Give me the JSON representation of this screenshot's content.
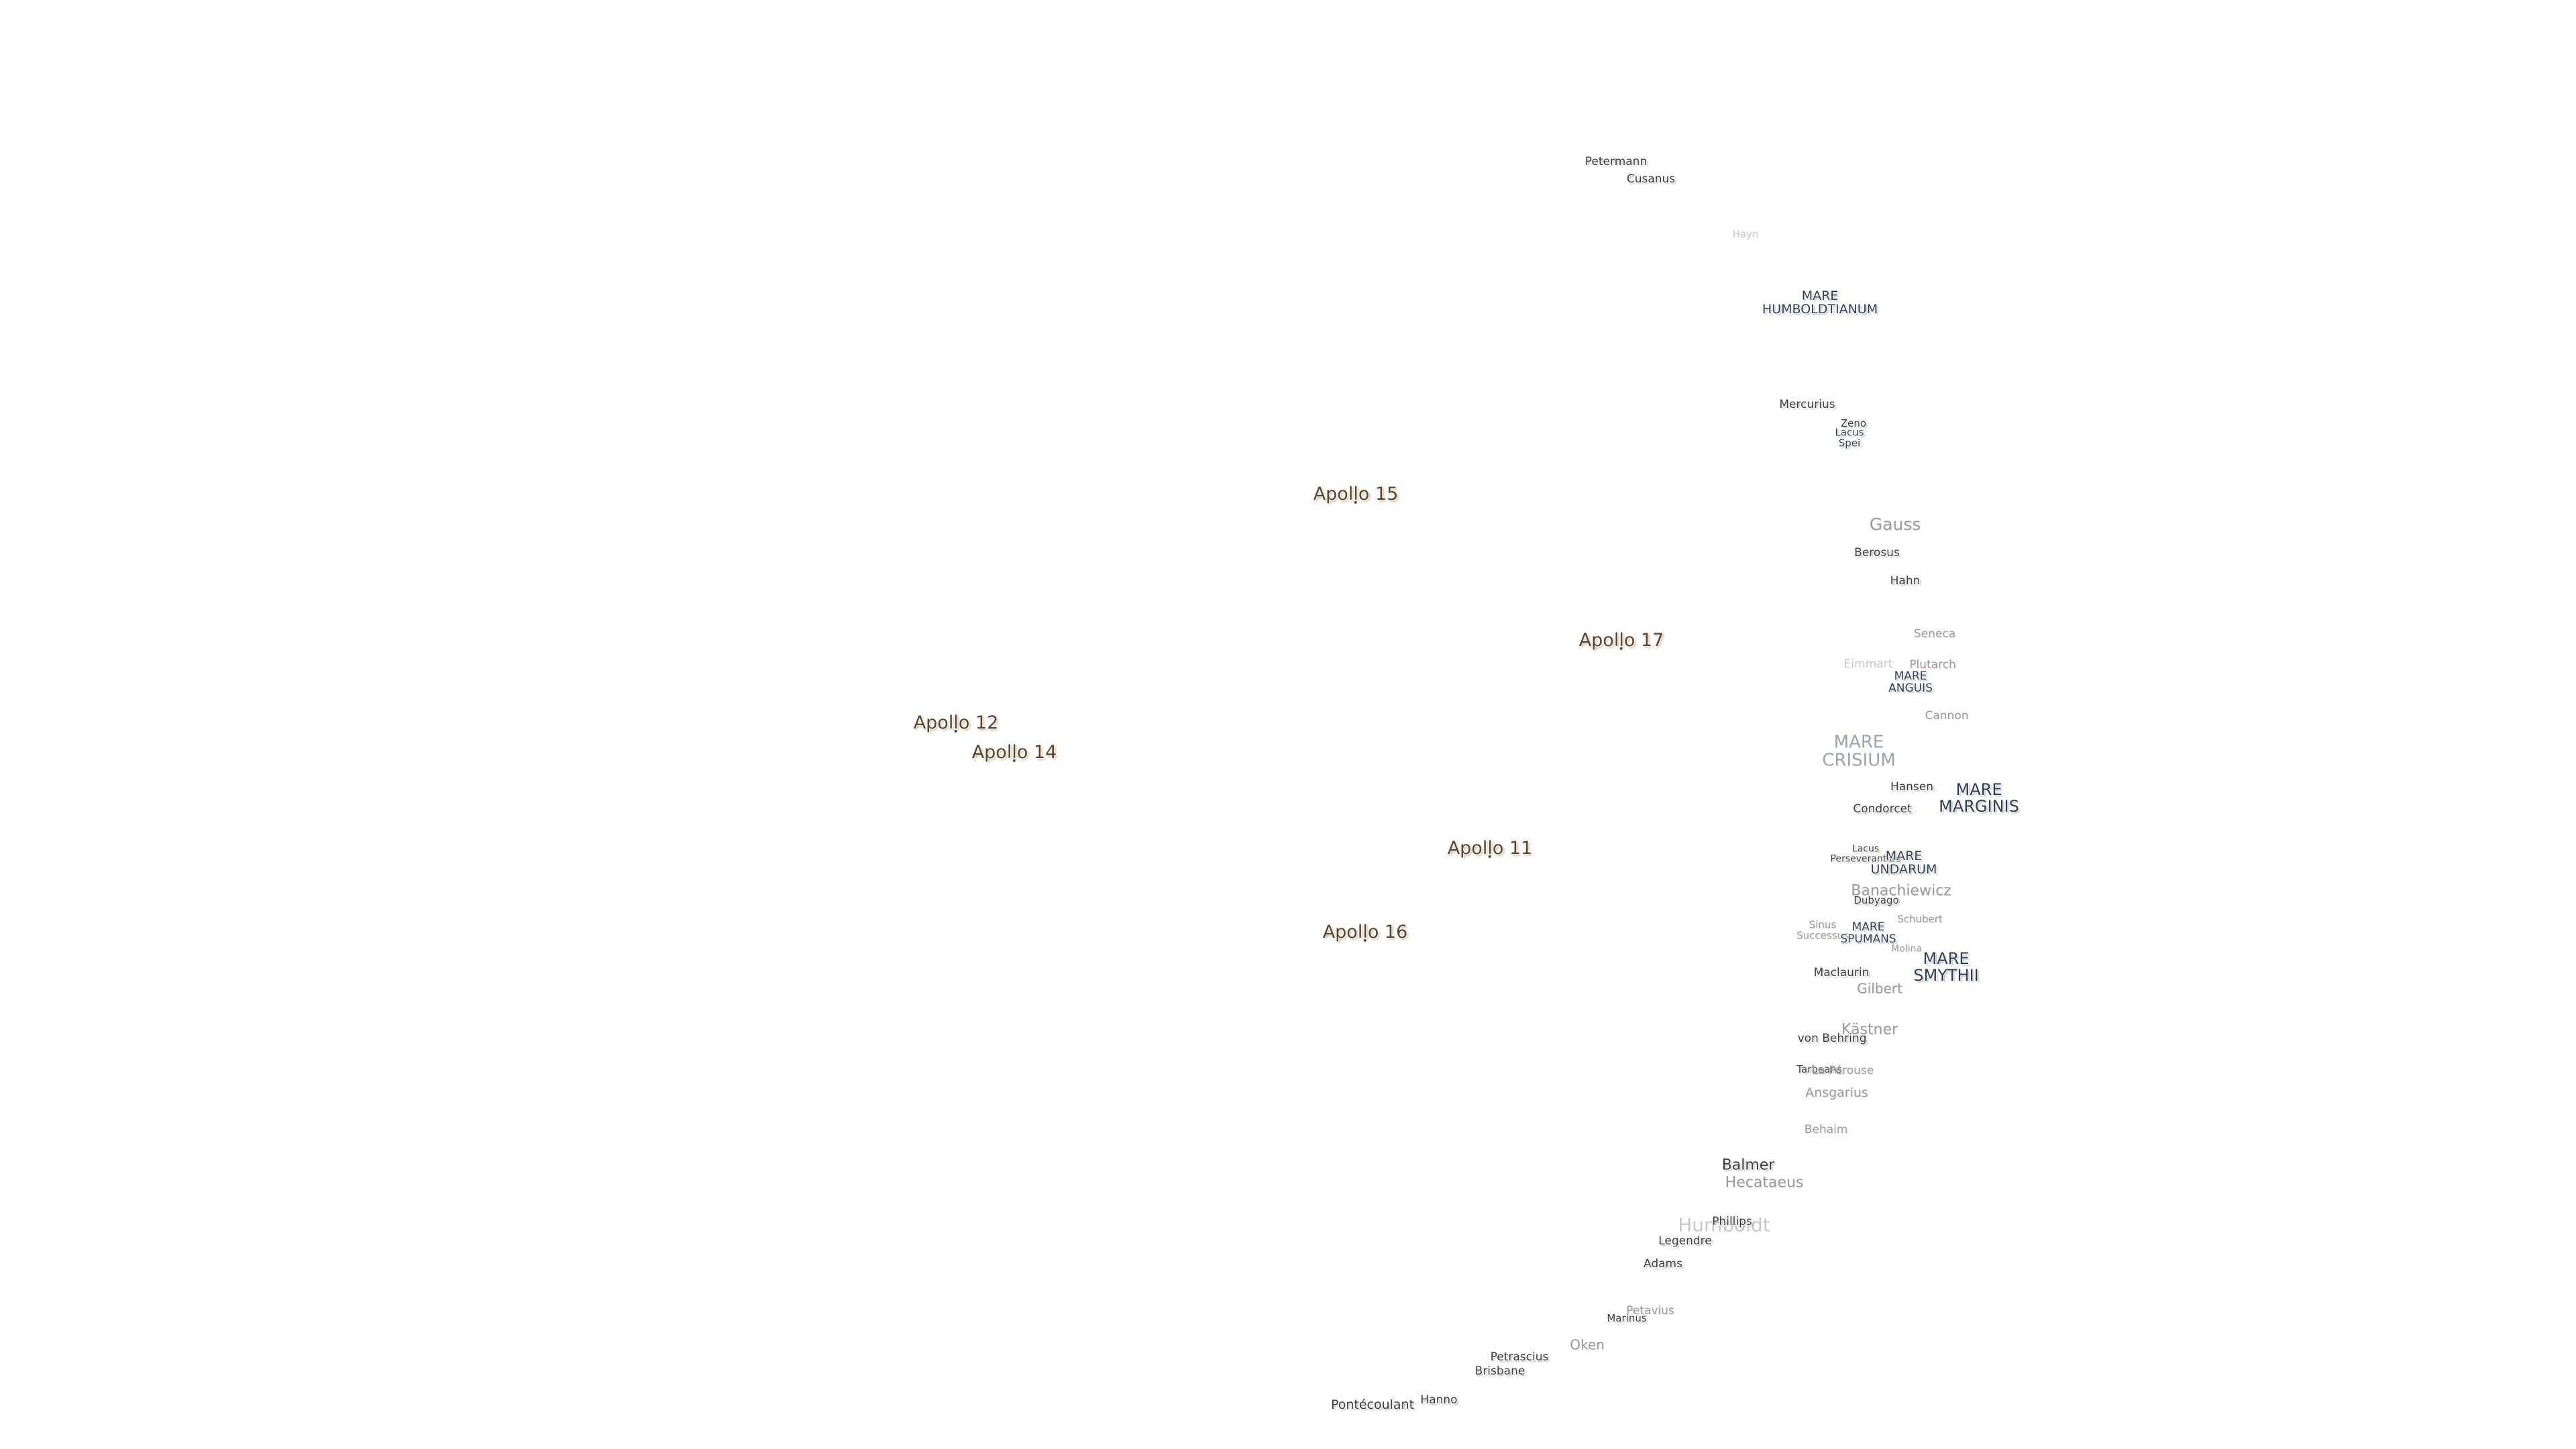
{
  "apollo_sites": [
    {
      "id": "apollo-15",
      "label": "Apollo 15"
    },
    {
      "id": "apollo-17",
      "label": "Apollo 17"
    },
    {
      "id": "apollo-12",
      "label": "Apollo 12"
    },
    {
      "id": "apollo-14",
      "label": "Apollo 14"
    },
    {
      "id": "apollo-11",
      "label": "Apollo 11"
    },
    {
      "id": "apollo-16",
      "label": "Apollo 16"
    }
  ],
  "maria": [
    {
      "id": "mare-humboldtianum",
      "label": "MARE\nHUMBOLDTIANUM"
    },
    {
      "id": "lacus-spei",
      "label": "Lacus\nSpei"
    },
    {
      "id": "mare-anguis",
      "label": "MARE\nANGUIS"
    },
    {
      "id": "mare-crisium",
      "label": "MARE\nCRISIUM"
    },
    {
      "id": "mare-marginis",
      "label": "MARE\nMARGINIS"
    },
    {
      "id": "lacus-perseverantiae",
      "label": "Lacus\nPerseverantiae"
    },
    {
      "id": "mare-undarum",
      "label": "MARE\nUNDARUM"
    },
    {
      "id": "sinus-successus",
      "label": "Sinus\nSuccessus"
    },
    {
      "id": "mare-spumans",
      "label": "MARE\nSPUMANS"
    },
    {
      "id": "mare-smythii",
      "label": "MARE\nSMYTHII"
    }
  ],
  "craters": [
    {
      "id": "petermann",
      "label": "Petermann"
    },
    {
      "id": "cusanus",
      "label": "Cusanus"
    },
    {
      "id": "hayn",
      "label": "Hayn"
    },
    {
      "id": "mercurius",
      "label": "Mercurius"
    },
    {
      "id": "zeno",
      "label": "Zeno"
    },
    {
      "id": "gauss",
      "label": "Gauss"
    },
    {
      "id": "berosus",
      "label": "Berosus"
    },
    {
      "id": "hahn",
      "label": "Hahn"
    },
    {
      "id": "seneca",
      "label": "Seneca"
    },
    {
      "id": "eimmart",
      "label": "Eimmart"
    },
    {
      "id": "plutarch",
      "label": "Plutarch"
    },
    {
      "id": "cannon",
      "label": "Cannon"
    },
    {
      "id": "hansen",
      "label": "Hansen"
    },
    {
      "id": "condorcet",
      "label": "Condorcet"
    },
    {
      "id": "banachiewicz",
      "label": "Banachiewicz"
    },
    {
      "id": "dubyago",
      "label": "Dubyago"
    },
    {
      "id": "schubert",
      "label": "Schubert"
    },
    {
      "id": "maclaurin",
      "label": "Maclaurin"
    },
    {
      "id": "gilbert",
      "label": "Gilbert"
    },
    {
      "id": "kastner",
      "label": "Kästner"
    },
    {
      "id": "von-behring",
      "label": "von Behring"
    },
    {
      "id": "la-perouse",
      "label": "La Pérouse"
    },
    {
      "id": "ansgarius",
      "label": "Ansgarius"
    },
    {
      "id": "behaim",
      "label": "Behaim"
    },
    {
      "id": "balmer",
      "label": "Balmer"
    },
    {
      "id": "hecataeus",
      "label": "Hecataeus"
    },
    {
      "id": "humboldt",
      "label": "Humboldt"
    },
    {
      "id": "phillips",
      "label": "Phillips"
    },
    {
      "id": "legendre",
      "label": "Legendre"
    },
    {
      "id": "adams",
      "label": "Adams"
    },
    {
      "id": "marinus",
      "label": "Marinus"
    },
    {
      "id": "oken",
      "label": "Oken"
    },
    {
      "id": "pétavius-area",
      "label": "Petavius"
    },
    {
      "id": "brisbane",
      "label": "Brisbane"
    },
    {
      "id": "hanno",
      "label": "Hanno"
    },
    {
      "id": "pontecoulant",
      "label": "Pontécoulant"
    },
    {
      "id": "molina",
      "label": "Molina"
    },
    {
      "id": "tarbeans",
      "label": "Tarbeans"
    }
  ]
}
